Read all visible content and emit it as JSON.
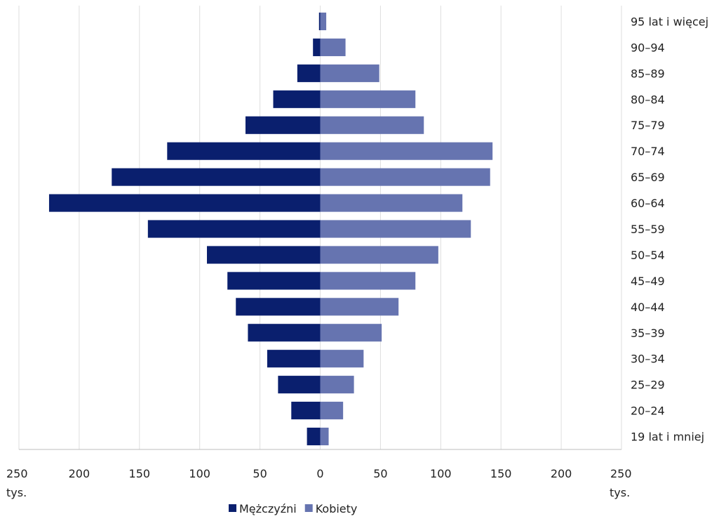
{
  "chart_data": {
    "type": "bar",
    "orientation": "horizontal",
    "diverging": true,
    "categories": [
      "95 lat i więcej",
      "90–94",
      "85–89",
      "80–84",
      "75–79",
      "70–74",
      "65–69",
      "60–64",
      "55–59",
      "50–54",
      "45–49",
      "40–44",
      "35–39",
      "30–34",
      "25–29",
      "20–24",
      "19 lat i mniej"
    ],
    "series": [
      {
        "name": "Mężczyźni",
        "color": "#0a1f6e",
        "side": "left",
        "values": [
          1,
          6,
          19,
          39,
          62,
          127,
          173,
          225,
          143,
          94,
          77,
          70,
          60,
          44,
          35,
          24,
          11
        ]
      },
      {
        "name": "Kobiety",
        "color": "#6674b0",
        "side": "right",
        "values": [
          5,
          21,
          49,
          79,
          86,
          143,
          141,
          118,
          125,
          98,
          79,
          65,
          51,
          36,
          28,
          19,
          7
        ]
      }
    ],
    "x_ticks": [
      "250",
      "200",
      "150",
      "100",
      "50",
      "0",
      "50",
      "100",
      "150",
      "200",
      "250"
    ],
    "x_unit_left": "tys.",
    "x_unit_right": "tys.",
    "xlim": [
      -250,
      250
    ],
    "grid": "vertical",
    "legend_position": "bottom-center",
    "category_label_position": "right"
  }
}
